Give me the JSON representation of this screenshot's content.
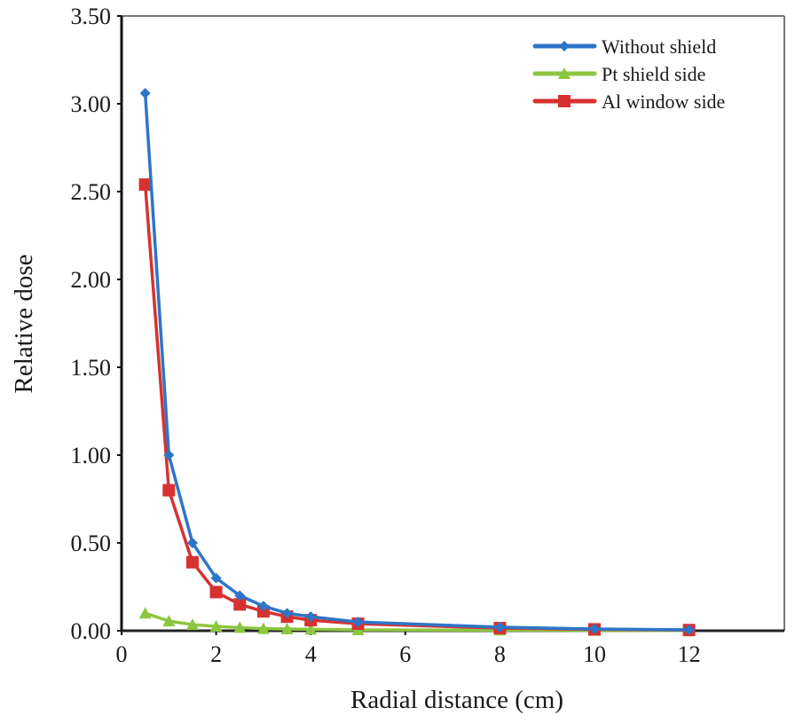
{
  "chart_data": {
    "type": "line",
    "title": "",
    "xlabel": "Radial distance (cm)",
    "ylabel": "Relative dose",
    "xlim": [
      0,
      14
    ],
    "ylim": [
      0,
      3.5
    ],
    "x_ticks": [
      "0",
      "2",
      "4",
      "6",
      "8",
      "10",
      "12"
    ],
    "y_ticks": [
      "0.00",
      "0.50",
      "1.00",
      "1.50",
      "2.00",
      "2.50",
      "3.00",
      "3.50"
    ],
    "grid": false,
    "legend_position": "upper right",
    "x": [
      0.5,
      1.0,
      1.5,
      2.0,
      2.5,
      3.0,
      3.5,
      4.0,
      5.0,
      8.0,
      10.0,
      12.0
    ],
    "series": [
      {
        "name": "Without shield",
        "color": "#2e75c8",
        "marker": "diamond",
        "values": [
          3.06,
          1.0,
          0.5,
          0.3,
          0.2,
          0.14,
          0.1,
          0.08,
          0.05,
          0.02,
          0.01,
          0.005
        ]
      },
      {
        "name": "Pt shield side",
        "color": "#8cc63f",
        "marker": "triangle",
        "values": [
          0.1,
          0.055,
          0.035,
          0.025,
          0.018,
          0.012,
          0.01,
          0.008,
          0.005,
          0.003,
          0.002,
          0.001
        ]
      },
      {
        "name": "Al window side",
        "color": "#d63232",
        "marker": "square",
        "values": [
          2.54,
          0.8,
          0.39,
          0.22,
          0.15,
          0.11,
          0.08,
          0.06,
          0.04,
          0.015,
          0.008,
          0.004
        ]
      }
    ]
  }
}
